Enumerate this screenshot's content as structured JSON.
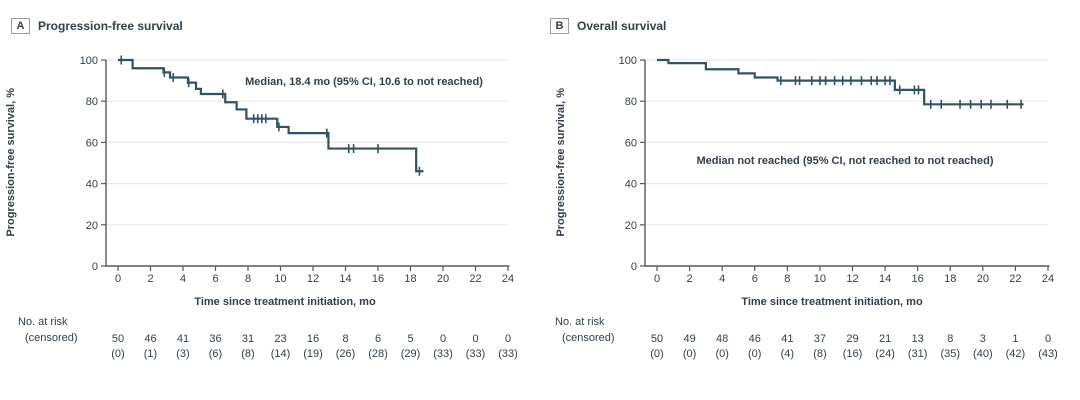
{
  "colors": {
    "curve": "#2D5465",
    "text": "#31404E",
    "axis": "#57585A",
    "grid": "#EAEAEA",
    "panel_box_border": "#9C9C9C"
  },
  "chart_data": [
    {
      "type": "km_step",
      "panel": "A",
      "title": "Progression-free survival",
      "annotation": "Median, 18.4 mo (95% CI, 10.6 to not reached)",
      "xlabel": "Time since treatment initiation, mo",
      "ylabel": "Progression-free survival, %",
      "xlim": [
        0,
        24
      ],
      "ylim": [
        0,
        100
      ],
      "xticks": [
        0,
        2,
        4,
        6,
        8,
        10,
        12,
        14,
        16,
        18,
        20,
        22,
        24
      ],
      "yticks": [
        0,
        20,
        40,
        60,
        80,
        100
      ],
      "grid": "horizontal",
      "legend": "none",
      "steps": [
        [
          0,
          100
        ],
        [
          0.9,
          96
        ],
        [
          2.8,
          94
        ],
        [
          3.2,
          91.5
        ],
        [
          4.3,
          89
        ],
        [
          4.8,
          86
        ],
        [
          5.1,
          83.5
        ],
        [
          6.6,
          79.5
        ],
        [
          7.3,
          76
        ],
        [
          7.9,
          71.5
        ],
        [
          9.8,
          67.5
        ],
        [
          10.5,
          64.5
        ],
        [
          12.95,
          57
        ],
        [
          18.35,
          46
        ]
      ],
      "end_time": 18.8,
      "censor_times": [
        0.2,
        2.85,
        3.4,
        4.35,
        6.45,
        8.35,
        8.6,
        8.85,
        9.1,
        9.9,
        12.85,
        14.2,
        14.5,
        16.0,
        18.55
      ],
      "risk_label": "No. at risk",
      "censored_label": "(censored)",
      "at_risk": [
        "50",
        "46",
        "41",
        "36",
        "31",
        "23",
        "16",
        "8",
        "6",
        "5",
        "0",
        "0",
        "0"
      ],
      "censored": [
        "(0)",
        "(1)",
        "(3)",
        "(6)",
        "(8)",
        "(14)",
        "(19)",
        "(26)",
        "(28)",
        "(29)",
        "(33)",
        "(33)",
        "(33)"
      ]
    },
    {
      "type": "km_step",
      "panel": "B",
      "title": "Overall survival",
      "annotation": "Median not reached (95% CI, not reached to not reached)",
      "xlabel": "Time since treatment initiation, mo",
      "ylabel": "Progression-free survival, %",
      "xlim": [
        0,
        24
      ],
      "ylim": [
        0,
        100
      ],
      "xticks": [
        0,
        2,
        4,
        6,
        8,
        10,
        12,
        14,
        16,
        18,
        20,
        22,
        24
      ],
      "yticks": [
        0,
        20,
        40,
        60,
        80,
        100
      ],
      "grid": "horizontal",
      "legend": "none",
      "steps": [
        [
          0,
          100
        ],
        [
          0.7,
          98.5
        ],
        [
          3.0,
          95.5
        ],
        [
          5.0,
          93.5
        ],
        [
          6.0,
          91.5
        ],
        [
          7.4,
          90
        ],
        [
          14.6,
          85.5
        ],
        [
          16.4,
          78.5
        ]
      ],
      "end_time": 22.5,
      "censor_times": [
        7.6,
        8.5,
        8.75,
        9.5,
        10.0,
        10.35,
        10.9,
        11.4,
        11.9,
        12.55,
        13.15,
        13.5,
        14.0,
        14.3,
        14.9,
        15.8,
        16.05,
        16.8,
        17.45,
        18.6,
        19.25,
        19.9,
        20.5,
        21.5,
        22.35
      ],
      "risk_label": "No. at risk",
      "censored_label": "(censored)",
      "at_risk": [
        "50",
        "49",
        "48",
        "46",
        "41",
        "37",
        "29",
        "21",
        "13",
        "8",
        "3",
        "1",
        "0"
      ],
      "censored": [
        "(0)",
        "(0)",
        "(0)",
        "(0)",
        "(4)",
        "(8)",
        "(16)",
        "(24)",
        "(31)",
        "(35)",
        "(40)",
        "(42)",
        "(43)"
      ]
    }
  ]
}
